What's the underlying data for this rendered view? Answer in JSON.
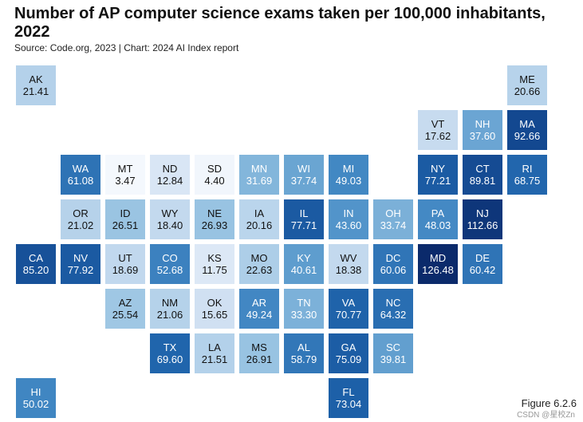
{
  "header": {
    "title": "Number of AP computer science exams taken per 100,000 inhabitants, 2022",
    "source": "Source: Code.org, 2023 | Chart: 2024 AI Index report"
  },
  "footer": {
    "figure_label": "Figure 6.2.6",
    "watermark": "CSDN @星校Zn"
  },
  "colors": {
    "scale_low": "#f4f8fd",
    "scale_high": "#0b2a6b"
  },
  "chart_data": {
    "type": "heatmap",
    "title": "Number of AP computer science exams taken per 100,000 inhabitants, 2022",
    "states": [
      {
        "abbr": "AK",
        "value": "21.41",
        "v": 21.41,
        "col": 0,
        "row": 0
      },
      {
        "abbr": "ME",
        "value": "20.66",
        "v": 20.66,
        "col": 11,
        "row": 0
      },
      {
        "abbr": "VT",
        "value": "17.62",
        "v": 17.62,
        "col": 9,
        "row": 1
      },
      {
        "abbr": "NH",
        "value": "37.60",
        "v": 37.6,
        "col": 10,
        "row": 1
      },
      {
        "abbr": "MA",
        "value": "92.66",
        "v": 92.66,
        "col": 11,
        "row": 1
      },
      {
        "abbr": "WA",
        "value": "61.08",
        "v": 61.08,
        "col": 1,
        "row": 2
      },
      {
        "abbr": "MT",
        "value": "3.47",
        "v": 3.47,
        "col": 2,
        "row": 2
      },
      {
        "abbr": "ND",
        "value": "12.84",
        "v": 12.84,
        "col": 3,
        "row": 2
      },
      {
        "abbr": "SD",
        "value": "4.40",
        "v": 4.4,
        "col": 4,
        "row": 2
      },
      {
        "abbr": "MN",
        "value": "31.69",
        "v": 31.69,
        "col": 5,
        "row": 2
      },
      {
        "abbr": "WI",
        "value": "37.74",
        "v": 37.74,
        "col": 6,
        "row": 2
      },
      {
        "abbr": "MI",
        "value": "49.03",
        "v": 49.03,
        "col": 7,
        "row": 2
      },
      {
        "abbr": "NY",
        "value": "77.21",
        "v": 77.21,
        "col": 9,
        "row": 2
      },
      {
        "abbr": "CT",
        "value": "89.81",
        "v": 89.81,
        "col": 10,
        "row": 2
      },
      {
        "abbr": "RI",
        "value": "68.75",
        "v": 68.75,
        "col": 11,
        "row": 2
      },
      {
        "abbr": "OR",
        "value": "21.02",
        "v": 21.02,
        "col": 1,
        "row": 3
      },
      {
        "abbr": "ID",
        "value": "26.51",
        "v": 26.51,
        "col": 2,
        "row": 3
      },
      {
        "abbr": "WY",
        "value": "18.40",
        "v": 18.4,
        "col": 3,
        "row": 3
      },
      {
        "abbr": "NE",
        "value": "26.93",
        "v": 26.93,
        "col": 4,
        "row": 3
      },
      {
        "abbr": "IA",
        "value": "20.16",
        "v": 20.16,
        "col": 5,
        "row": 3
      },
      {
        "abbr": "IL",
        "value": "77.71",
        "v": 77.71,
        "col": 6,
        "row": 3
      },
      {
        "abbr": "IN",
        "value": "43.60",
        "v": 43.6,
        "col": 7,
        "row": 3
      },
      {
        "abbr": "OH",
        "value": "33.74",
        "v": 33.74,
        "col": 8,
        "row": 3
      },
      {
        "abbr": "PA",
        "value": "48.03",
        "v": 48.03,
        "col": 9,
        "row": 3
      },
      {
        "abbr": "NJ",
        "value": "112.66",
        "v": 112.66,
        "col": 10,
        "row": 3
      },
      {
        "abbr": "CA",
        "value": "85.20",
        "v": 85.2,
        "col": 0,
        "row": 4
      },
      {
        "abbr": "NV",
        "value": "77.92",
        "v": 77.92,
        "col": 1,
        "row": 4
      },
      {
        "abbr": "UT",
        "value": "18.69",
        "v": 18.69,
        "col": 2,
        "row": 4
      },
      {
        "abbr": "CO",
        "value": "52.68",
        "v": 52.68,
        "col": 3,
        "row": 4
      },
      {
        "abbr": "KS",
        "value": "11.75",
        "v": 11.75,
        "col": 4,
        "row": 4
      },
      {
        "abbr": "MO",
        "value": "22.63",
        "v": 22.63,
        "col": 5,
        "row": 4
      },
      {
        "abbr": "KY",
        "value": "40.61",
        "v": 40.61,
        "col": 6,
        "row": 4
      },
      {
        "abbr": "WV",
        "value": "18.38",
        "v": 18.38,
        "col": 7,
        "row": 4
      },
      {
        "abbr": "DC",
        "value": "60.06",
        "v": 60.06,
        "col": 8,
        "row": 4
      },
      {
        "abbr": "MD",
        "value": "126.48",
        "v": 126.48,
        "col": 9,
        "row": 4
      },
      {
        "abbr": "DE",
        "value": "60.42",
        "v": 60.42,
        "col": 10,
        "row": 4
      },
      {
        "abbr": "AZ",
        "value": "25.54",
        "v": 25.54,
        "col": 2,
        "row": 5
      },
      {
        "abbr": "NM",
        "value": "21.06",
        "v": 21.06,
        "col": 3,
        "row": 5
      },
      {
        "abbr": "OK",
        "value": "15.65",
        "v": 15.65,
        "col": 4,
        "row": 5
      },
      {
        "abbr": "AR",
        "value": "49.24",
        "v": 49.24,
        "col": 5,
        "row": 5
      },
      {
        "abbr": "TN",
        "value": "33.30",
        "v": 33.3,
        "col": 6,
        "row": 5
      },
      {
        "abbr": "VA",
        "value": "70.77",
        "v": 70.77,
        "col": 7,
        "row": 5
      },
      {
        "abbr": "NC",
        "value": "64.32",
        "v": 64.32,
        "col": 8,
        "row": 5
      },
      {
        "abbr": "TX",
        "value": "69.60",
        "v": 69.6,
        "col": 3,
        "row": 6
      },
      {
        "abbr": "LA",
        "value": "21.51",
        "v": 21.51,
        "col": 4,
        "row": 6
      },
      {
        "abbr": "MS",
        "value": "26.91",
        "v": 26.91,
        "col": 5,
        "row": 6
      },
      {
        "abbr": "AL",
        "value": "58.79",
        "v": 58.79,
        "col": 6,
        "row": 6
      },
      {
        "abbr": "GA",
        "value": "75.09",
        "v": 75.09,
        "col": 7,
        "row": 6
      },
      {
        "abbr": "SC",
        "value": "39.81",
        "v": 39.81,
        "col": 8,
        "row": 6
      },
      {
        "abbr": "HI",
        "value": "50.02",
        "v": 50.02,
        "col": 0,
        "row": 7
      },
      {
        "abbr": "FL",
        "value": "73.04",
        "v": 73.04,
        "col": 7,
        "row": 7
      }
    ]
  }
}
